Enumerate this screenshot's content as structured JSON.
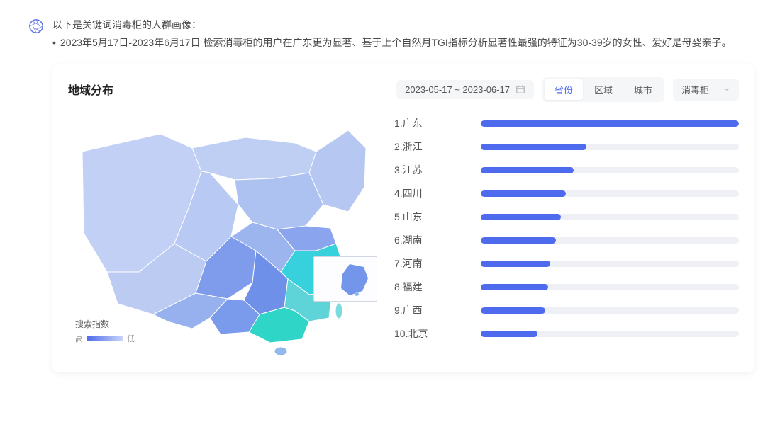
{
  "intro": {
    "title": "以下是关键词消毒柜的人群画像：",
    "bullet": "2023年5月17日-2023年6月17日 检索消毒柜的用户在广东更为显著、基于上个自然月TGI指标分析显著性最强的特征为30-39岁的女性、爱好是母婴亲子。"
  },
  "card": {
    "title": "地域分布",
    "date_range": "2023-05-17 ~ 2023-06-17",
    "tabs": [
      "省份",
      "区域",
      "城市"
    ],
    "active_tab_index": 0,
    "keyword_select": "消毒柜",
    "legend_title": "搜索指数",
    "legend_high": "高",
    "legend_low": "低"
  },
  "ranking": {
    "type": "bar",
    "bar_color": "#4f6bed",
    "track_color": "#eef0f6",
    "max_value": 100,
    "items": [
      {
        "label": "1.广东",
        "value": 100
      },
      {
        "label": "2.浙江",
        "value": 41
      },
      {
        "label": "3.江苏",
        "value": 36
      },
      {
        "label": "4.四川",
        "value": 33
      },
      {
        "label": "5.山东",
        "value": 31
      },
      {
        "label": "6.湖南",
        "value": 29
      },
      {
        "label": "7.河南",
        "value": 27
      },
      {
        "label": "8.福建",
        "value": 26
      },
      {
        "label": "9.广西",
        "value": 25
      },
      {
        "label": "10.北京",
        "value": 22
      }
    ]
  },
  "map": {
    "low_color": "#c8d4f8",
    "mid_color": "#8fa8f0",
    "high_color": "#4f6bed",
    "accent_color": "#36d1dc",
    "outline_color": "#ffffff"
  }
}
